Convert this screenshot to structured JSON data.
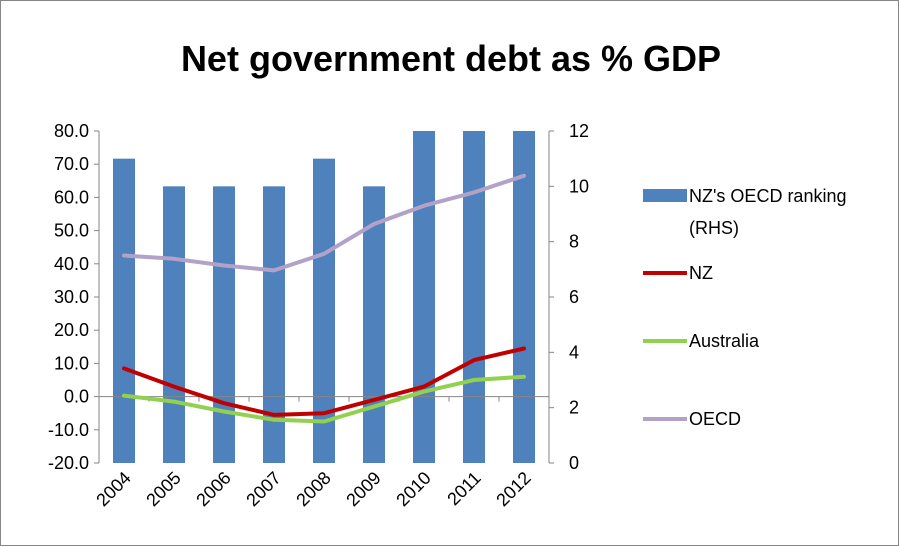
{
  "chart_data": {
    "type": "bar+line",
    "title": "Net government debt as % GDP",
    "categories": [
      "2004",
      "2005",
      "2006",
      "2007",
      "2008",
      "2009",
      "2010",
      "2011",
      "2012"
    ],
    "y_left": {
      "range": [
        -20,
        80
      ],
      "ticks": [
        "80.0",
        "70.0",
        "60.0",
        "50.0",
        "40.0",
        "30.0",
        "20.0",
        "10.0",
        "0.0",
        "-10.0",
        "-20.0"
      ],
      "tick_values": [
        80,
        70,
        60,
        50,
        40,
        30,
        20,
        10,
        0,
        -10,
        -20
      ]
    },
    "y_right": {
      "range": [
        0,
        12
      ],
      "ticks": [
        "12",
        "10",
        "8",
        "6",
        "4",
        "2",
        "0"
      ],
      "tick_values": [
        12,
        10,
        8,
        6,
        4,
        2,
        0
      ]
    },
    "grid": false,
    "legend_position": "right",
    "series": [
      {
        "name": "NZ's OECD ranking (RHS)",
        "kind": "bar",
        "axis": "right",
        "color": "#4F81BD",
        "values": [
          11,
          10,
          10,
          10,
          11,
          10,
          12,
          12,
          12
        ]
      },
      {
        "name": "NZ",
        "kind": "line",
        "axis": "left",
        "color": "#C00000",
        "values": [
          8.5,
          3.0,
          -2.0,
          -5.5,
          -5.0,
          -1.0,
          3.0,
          11.0,
          14.5
        ]
      },
      {
        "name": "Australia",
        "kind": "line",
        "axis": "left",
        "color": "#92D050",
        "values": [
          0.3,
          -1.5,
          -4.5,
          -7.0,
          -7.5,
          -3.0,
          1.5,
          5.0,
          6.0
        ]
      },
      {
        "name": "OECD",
        "kind": "line",
        "axis": "left",
        "color": "#B3A2C7",
        "values": [
          42.5,
          41.5,
          39.5,
          38.0,
          43.0,
          52.0,
          57.5,
          61.5,
          66.5
        ]
      }
    ]
  }
}
